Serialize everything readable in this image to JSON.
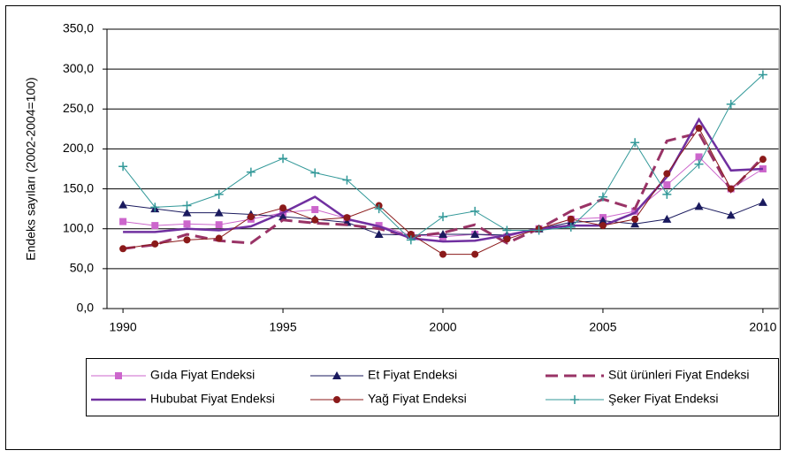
{
  "chart_data": {
    "type": "line",
    "y_label": "Endeks sayıları (2002-2004=100)",
    "x": [
      1990,
      1991,
      1992,
      1993,
      1994,
      1995,
      1996,
      1997,
      1998,
      1999,
      2000,
      2001,
      2002,
      2003,
      2004,
      2005,
      2006,
      2007,
      2008,
      2009,
      2010
    ],
    "xlim": [
      1989.5,
      2010.5
    ],
    "xticks": [
      1990,
      1995,
      2000,
      2005,
      2010
    ],
    "ylim": [
      0,
      350
    ],
    "yticks": [
      {
        "value": 0,
        "label": "0,0"
      },
      {
        "value": 50,
        "label": "50,0"
      },
      {
        "value": 100,
        "label": "100,0"
      },
      {
        "value": 150,
        "label": "150,0"
      },
      {
        "value": 200,
        "label": "200,0"
      },
      {
        "value": 250,
        "label": "250,0"
      },
      {
        "value": 300,
        "label": "300,0"
      },
      {
        "value": 350,
        "label": "350,0"
      }
    ],
    "grid": true,
    "series": [
      {
        "name": "Gıda Fiyat Endeksi",
        "color": "#cc66cc",
        "marker": "square",
        "linestyle": "solid",
        "linewidth": 1,
        "values": [
          109,
          104,
          106,
          105,
          112,
          120,
          124,
          113,
          104,
          92,
          90,
          93,
          90,
          100,
          112,
          114,
          122,
          155,
          190,
          150,
          175
        ]
      },
      {
        "name": "Et Fiyat Endeksi",
        "color": "#1a1a5e",
        "marker": "triangle",
        "linestyle": "solid",
        "linewidth": 1,
        "values": [
          130,
          125,
          120,
          120,
          118,
          115,
          112,
          108,
          93,
          92,
          93,
          93,
          92,
          100,
          108,
          110,
          106,
          112,
          128,
          117,
          133
        ]
      },
      {
        "name": "Süt ürünleri Fiyat Endeksi",
        "color": "#993366",
        "marker": "none",
        "linestyle": "dashed",
        "linewidth": 3,
        "values": [
          75,
          80,
          93,
          85,
          82,
          111,
          107,
          105,
          100,
          90,
          95,
          105,
          82,
          100,
          122,
          137,
          125,
          210,
          220,
          147,
          190
        ]
      },
      {
        "name": "Hububat Fiyat Endeksi",
        "color": "#7030a0",
        "marker": "none",
        "linestyle": "solid",
        "linewidth": 2.5,
        "values": [
          96,
          96,
          100,
          98,
          103,
          120,
          140,
          112,
          103,
          88,
          84,
          85,
          92,
          100,
          104,
          104,
          120,
          165,
          237,
          173,
          175
        ]
      },
      {
        "name": "Yağ Fiyat Endeksi",
        "color": "#8b1a1a",
        "marker": "circle",
        "linestyle": "solid",
        "linewidth": 1,
        "values": [
          75,
          81,
          86,
          88,
          115,
          126,
          111,
          114,
          129,
          93,
          68,
          68,
          87,
          100,
          112,
          104,
          112,
          169,
          226,
          150,
          187
        ]
      },
      {
        "name": "Şeker Fiyat Endeksi",
        "color": "#339999",
        "marker": "plus",
        "linestyle": "solid",
        "linewidth": 1,
        "values": [
          178,
          127,
          129,
          143,
          171,
          188,
          170,
          161,
          125,
          86,
          115,
          122,
          98,
          98,
          102,
          140,
          208,
          143,
          181,
          256,
          293
        ]
      }
    ]
  }
}
